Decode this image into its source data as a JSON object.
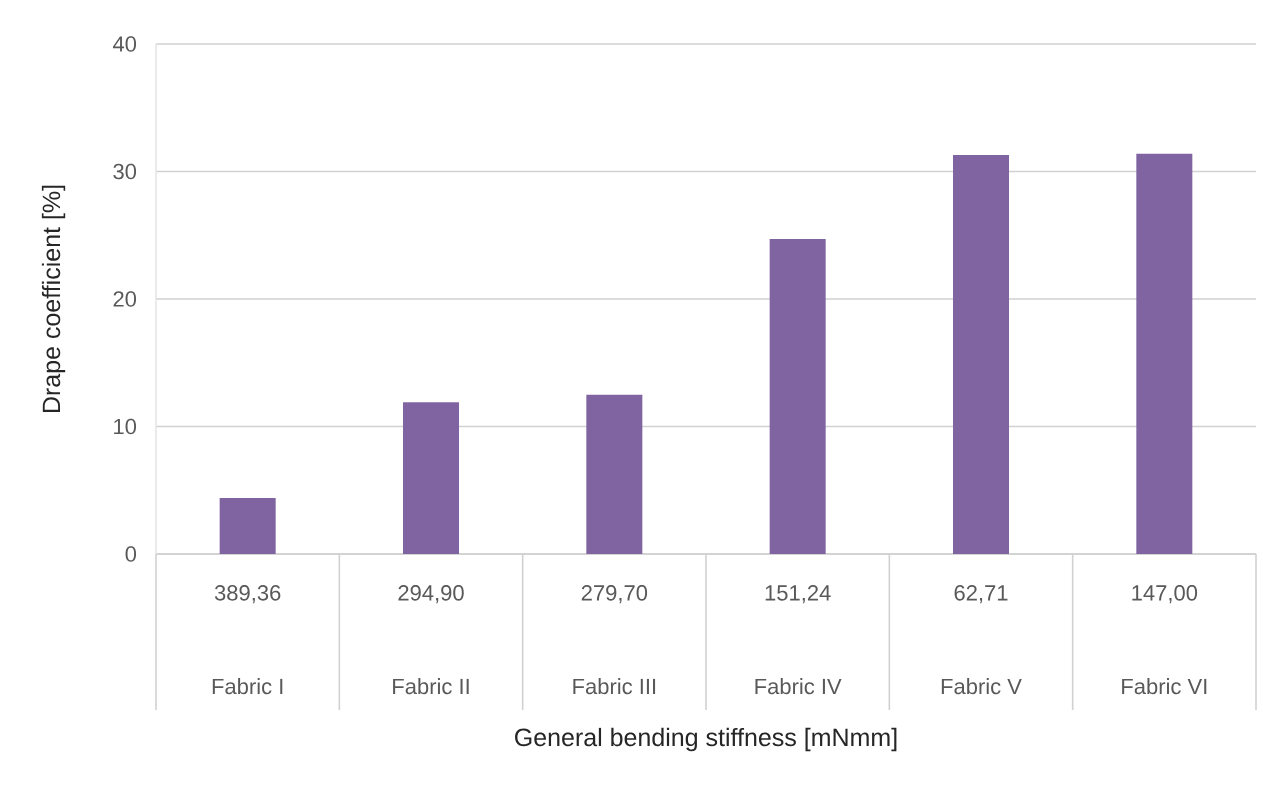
{
  "chart_data": {
    "type": "bar",
    "categories": [
      "389,36",
      "294,90",
      "279,70",
      "151,24",
      "62,71",
      "147,00"
    ],
    "values": [
      4.4,
      11.9,
      12.5,
      24.7,
      31.3,
      31.4
    ],
    "color": "#8064a2",
    "xlabel": "General bending stiffness [mNmm]",
    "ylabel": "Drape coefficient  [%]",
    "ylim": [
      0,
      40
    ],
    "yticks": [
      0,
      10,
      20,
      30,
      40
    ],
    "grid": "y",
    "annotations": [
      "Fabric  I",
      "Fabric  II",
      "Fabric III",
      "Fabric  IV",
      "Fabric  V",
      "Fabric VI"
    ]
  }
}
